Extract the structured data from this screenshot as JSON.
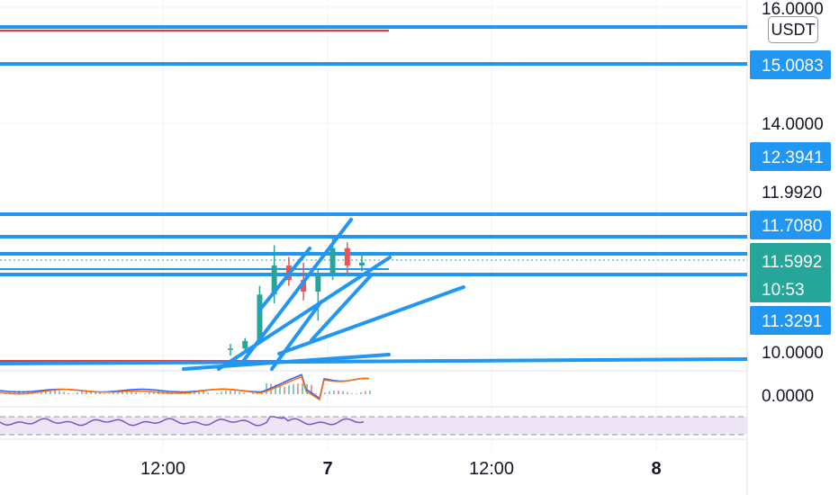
{
  "price_axis": {
    "labels": [
      "16.0000",
      "14.0000",
      "11.9920",
      "10.0000",
      "0.0000"
    ],
    "currency": "USDT"
  },
  "price_tags": [
    {
      "label": "15.0083",
      "color": "#2196f3"
    },
    {
      "label": "12.3941",
      "color": "#2196f3"
    },
    {
      "label": "11.7080",
      "color": "#2196f3"
    },
    {
      "label": "11.5992",
      "color": "#26a69a",
      "countdown": "10:53"
    },
    {
      "label": "11.3291",
      "color": "#2196f3"
    }
  ],
  "time_axis": {
    "labels": [
      "12:00",
      "7",
      "12:00",
      "8"
    ]
  },
  "colors": {
    "drawing_blue": "#2196f3",
    "up_candle": "#26a69a",
    "down_candle": "#ef5350",
    "red_line": "#e53935",
    "macd_line": "#2962ff",
    "signal_line": "#ff6d00",
    "rsi_line": "#7e57c2",
    "rsi_band": "#ede4f5",
    "grid": "#f0f3fa"
  },
  "chart_data": {
    "type": "candlestick",
    "symbol_quote": "USDT",
    "last_price": 11.5992,
    "price_range_visible": [
      9.6,
      16.1
    ],
    "horizontal_levels": [
      15.78,
      15.0083,
      11.708,
      11.5992,
      11.45
    ],
    "ohlc_approx": [
      {
        "o": 10.1,
        "h": 10.2,
        "l": 10.0,
        "c": 10.12
      },
      {
        "o": 10.12,
        "h": 10.3,
        "l": 10.05,
        "c": 10.25
      },
      {
        "o": 10.25,
        "h": 11.2,
        "l": 10.2,
        "c": 11.05
      },
      {
        "o": 11.05,
        "h": 11.9,
        "l": 10.9,
        "c": 11.55
      },
      {
        "o": 11.55,
        "h": 11.7,
        "l": 11.2,
        "c": 11.3
      },
      {
        "o": 11.3,
        "h": 11.6,
        "l": 10.95,
        "c": 11.1
      },
      {
        "o": 11.1,
        "h": 11.5,
        "l": 10.6,
        "c": 11.4
      },
      {
        "o": 11.4,
        "h": 12.05,
        "l": 11.3,
        "c": 11.85
      },
      {
        "o": 11.85,
        "h": 11.95,
        "l": 11.4,
        "c": 11.55
      },
      {
        "o": 11.55,
        "h": 11.75,
        "l": 11.45,
        "c": 11.6
      }
    ]
  }
}
